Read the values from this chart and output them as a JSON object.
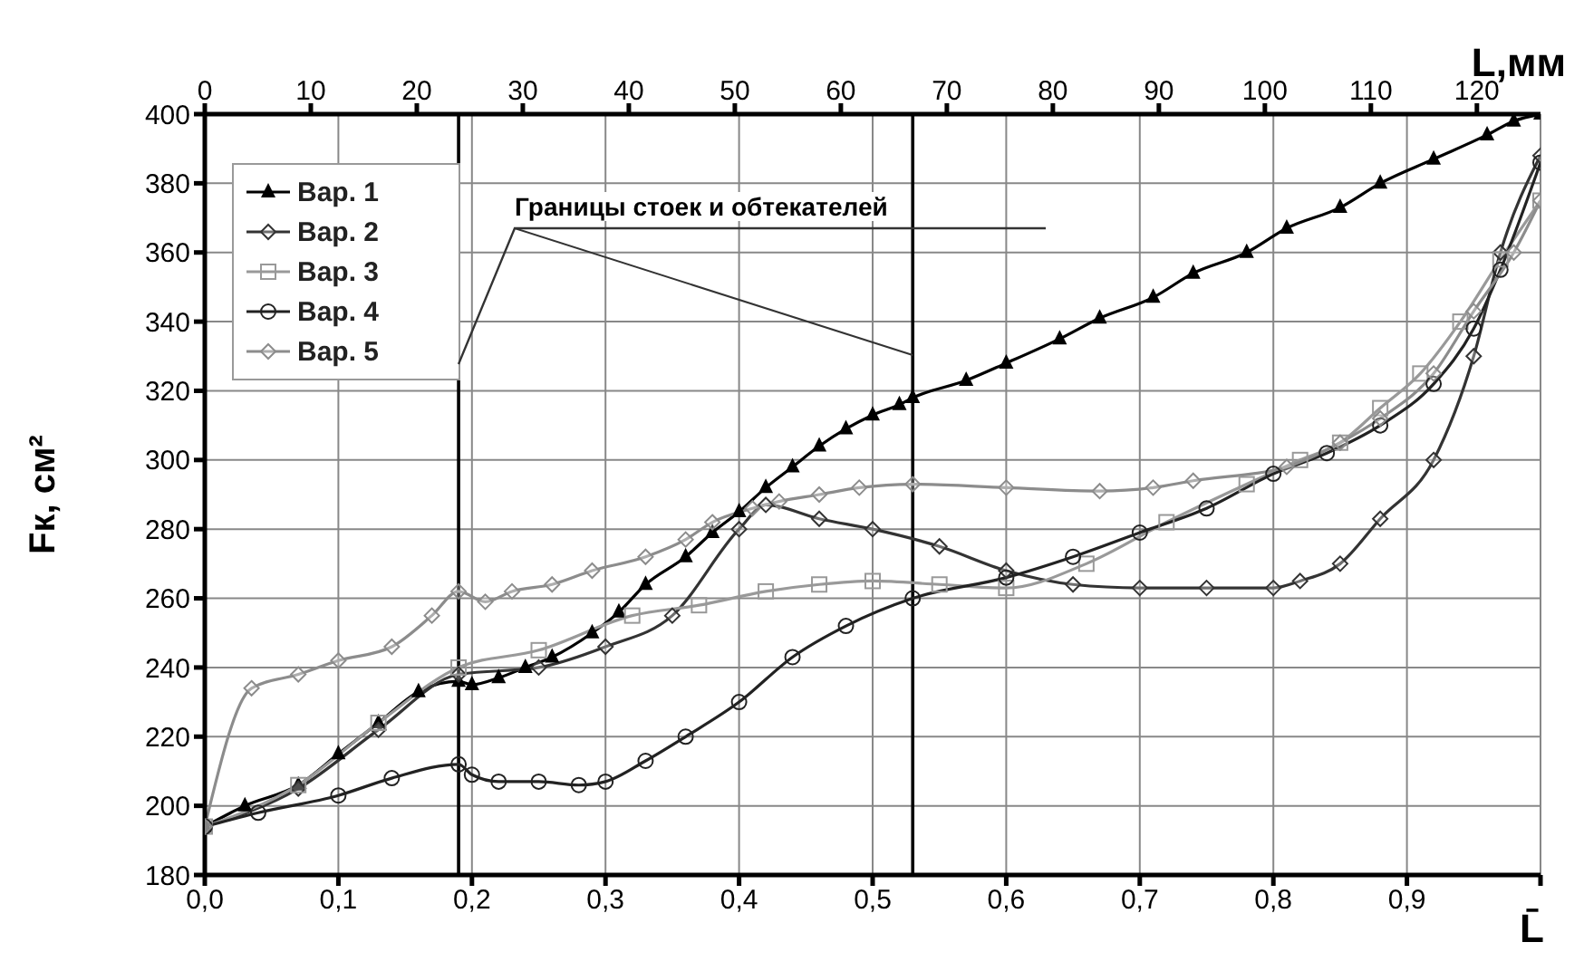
{
  "chart_data": {
    "type": "line",
    "xlabel": "L̄",
    "x2label": "L,мм",
    "ylabel": "Fк, см²",
    "xlim": [
      0,
      1
    ],
    "xticks": [
      {
        "value": 0,
        "label": "0,0"
      },
      {
        "value": 0.1,
        "label": "0,1"
      },
      {
        "value": 0.2,
        "label": "0,2"
      },
      {
        "value": 0.3,
        "label": "0,3"
      },
      {
        "value": 0.4,
        "label": "0,4"
      },
      {
        "value": 0.5,
        "label": "0,5"
      },
      {
        "value": 0.6,
        "label": "0,6"
      },
      {
        "value": 0.7,
        "label": "0,7"
      },
      {
        "value": 0.8,
        "label": "0,8"
      },
      {
        "value": 0.9,
        "label": "0,9"
      },
      {
        "value": 1,
        "label": null
      }
    ],
    "x2lim": [
      0,
      126
    ],
    "x2ticks": [
      0,
      10,
      20,
      30,
      40,
      50,
      60,
      70,
      80,
      90,
      100,
      110,
      120
    ],
    "ylim": [
      180,
      400
    ],
    "yticks": [
      180,
      200,
      220,
      240,
      260,
      280,
      300,
      320,
      340,
      360,
      380,
      400
    ],
    "grid": true,
    "legend": "top left",
    "line_style": "solid",
    "ref_lines": [
      {
        "axis": "x",
        "value": 0.19,
        "color": "#000000"
      },
      {
        "axis": "x",
        "value": 0.53,
        "color": "#000000"
      }
    ],
    "annotations": [
      {
        "text": "Границы стоек и обтекателей",
        "x": 0.19,
        "y": 328
      }
    ],
    "series": [
      {
        "name": "Вар. 1",
        "color": "#000000",
        "marker": "triangle",
        "x": [
          0,
          0.03,
          0.07,
          0.1,
          0.13,
          0.16,
          0.19,
          0.2,
          0.22,
          0.24,
          0.26,
          0.29,
          0.31,
          0.33,
          0.36,
          0.38,
          0.4,
          0.42,
          0.44,
          0.46,
          0.48,
          0.5,
          0.52,
          0.53,
          0.57,
          0.6,
          0.64,
          0.67,
          0.71,
          0.74,
          0.78,
          0.81,
          0.85,
          0.88,
          0.92,
          0.96,
          0.98,
          1
        ],
        "values": [
          194,
          200,
          206,
          215,
          224,
          233,
          236,
          235,
          237,
          240,
          243,
          250,
          256,
          264,
          272,
          279,
          285,
          292,
          298,
          304,
          309,
          313,
          316,
          318,
          323,
          328,
          335,
          341,
          347,
          354,
          360,
          367,
          373,
          380,
          387,
          394,
          398,
          400
        ]
      },
      {
        "name": "Вар. 2",
        "color": "#333333",
        "marker": "diamond",
        "x": [
          0,
          0.07,
          0.13,
          0.19,
          0.25,
          0.3,
          0.35,
          0.4,
          0.42,
          0.46,
          0.5,
          0.55,
          0.6,
          0.65,
          0.7,
          0.75,
          0.8,
          0.82,
          0.85,
          0.88,
          0.92,
          0.95,
          0.97,
          1
        ],
        "values": [
          194,
          205,
          222,
          238,
          240,
          246,
          255,
          280,
          287,
          283,
          280,
          275,
          268,
          264,
          263,
          263,
          263,
          265,
          270,
          283,
          300,
          330,
          360,
          388
        ]
      },
      {
        "name": "Вар. 3",
        "color": "#999999",
        "marker": "square",
        "x": [
          0,
          0.07,
          0.13,
          0.19,
          0.25,
          0.32,
          0.37,
          0.42,
          0.46,
          0.5,
          0.55,
          0.6,
          0.66,
          0.72,
          0.78,
          0.82,
          0.85,
          0.88,
          0.91,
          0.94,
          0.97,
          1
        ],
        "values": [
          194,
          206,
          224,
          240,
          245,
          255,
          258,
          262,
          264,
          265,
          264,
          263,
          270,
          282,
          293,
          300,
          305,
          315,
          325,
          340,
          358,
          375
        ]
      },
      {
        "name": "Вар. 4",
        "color": "#222222",
        "marker": "circle",
        "x": [
          0,
          0.04,
          0.1,
          0.14,
          0.19,
          0.2,
          0.22,
          0.25,
          0.28,
          0.3,
          0.33,
          0.36,
          0.4,
          0.44,
          0.48,
          0.53,
          0.6,
          0.65,
          0.7,
          0.75,
          0.8,
          0.84,
          0.88,
          0.92,
          0.95,
          0.97,
          1
        ],
        "values": [
          194,
          198,
          203,
          208,
          212,
          209,
          207,
          207,
          206,
          207,
          213,
          220,
          230,
          243,
          252,
          260,
          266,
          272,
          279,
          286,
          296,
          302,
          310,
          322,
          338,
          355,
          386
        ]
      },
      {
        "name": "Вар. 5",
        "color": "#8c8c8c",
        "marker": "diamond",
        "x": [
          0,
          0.035,
          0.07,
          0.1,
          0.14,
          0.17,
          0.19,
          0.21,
          0.23,
          0.26,
          0.29,
          0.33,
          0.36,
          0.38,
          0.41,
          0.43,
          0.46,
          0.49,
          0.53,
          0.6,
          0.67,
          0.71,
          0.74,
          0.81,
          0.85,
          0.88,
          0.92,
          0.95,
          0.98,
          1
        ],
        "values": [
          194,
          234,
          238,
          242,
          246,
          255,
          262,
          259,
          262,
          264,
          268,
          272,
          277,
          282,
          286,
          288,
          290,
          292,
          293,
          292,
          291,
          292,
          294,
          298,
          305,
          312,
          325,
          343,
          360,
          375
        ]
      }
    ]
  }
}
